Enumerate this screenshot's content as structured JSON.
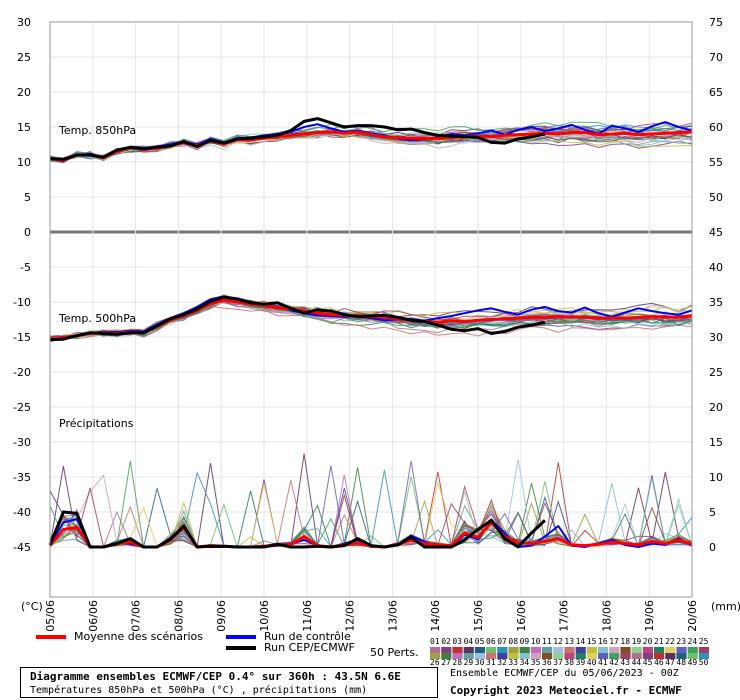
{
  "chart_data": {
    "type": "line",
    "dates": [
      "05/06",
      "06/06",
      "07/06",
      "08/06",
      "09/06",
      "10/06",
      "11/06",
      "12/06",
      "13/06",
      "14/06",
      "15/06",
      "16/06",
      "17/06",
      "18/06",
      "19/06",
      "20/06"
    ],
    "left_axis": {
      "label": "(°C)",
      "ticks": [
        30,
        25,
        20,
        15,
        10,
        5,
        0,
        -5,
        -10,
        -15,
        -20,
        -25,
        -30,
        -35,
        -40,
        -45
      ]
    },
    "right_axis": {
      "label": "(mm)",
      "ticks": [
        75,
        70,
        65,
        60,
        55,
        50,
        45,
        40,
        35,
        30,
        25,
        20,
        15,
        10,
        5,
        0
      ]
    },
    "panel_labels": {
      "t850": "Temp. 850hPa",
      "t500": "Temp. 500hPa",
      "precip": "Précipitations"
    },
    "series": [
      {
        "name": "Moyenne des scénarios",
        "color": "#ff0000",
        "t850": [
          10.5,
          10.3,
          11,
          11,
          10.6,
          11.5,
          12,
          11.8,
          12,
          12.3,
          12.8,
          12.3,
          13,
          12.6,
          13.2,
          13.2,
          13.4,
          13.6,
          13.8,
          14,
          14.2,
          14.3,
          14.1,
          14.3,
          13.9,
          13.6,
          13.5,
          13.4,
          13.4,
          13.3,
          13.5,
          13.6,
          13.7,
          13.6,
          13.8,
          13.9,
          14.0,
          14.1,
          14.0,
          14.2,
          14.2,
          13.9,
          14.0,
          14.1,
          13.9,
          14.0,
          14.1,
          14.2,
          14.3
        ],
        "t500": [
          -15.3,
          -15.1,
          -14.8,
          -14.5,
          -14.4,
          -14.5,
          -14.3,
          -14.4,
          -13.5,
          -12.6,
          -12,
          -11.2,
          -10.2,
          -9.7,
          -10,
          -10.3,
          -10.5,
          -10.8,
          -11,
          -11.3,
          -11.6,
          -11.8,
          -11.9,
          -12,
          -12.1,
          -12.2,
          -12.4,
          -12.6,
          -12.8,
          -12.9,
          -12.7,
          -12.8,
          -12.6,
          -12.5,
          -12.4,
          -12.3,
          -12.2,
          -12.2,
          -12.1,
          -12.1,
          -12.2,
          -12.3,
          -12.3,
          -12.3,
          -12.2,
          -12.1,
          -12.1,
          -12.2,
          -12.0
        ],
        "precip": [
          0.2,
          2.5,
          2.8,
          0,
          0,
          0.5,
          0.7,
          0,
          0,
          1,
          2.8,
          0,
          0.2,
          0.1,
          0,
          0,
          0.1,
          0.3,
          0.4,
          1.5,
          0.2,
          0,
          0.3,
          0.6,
          0.1,
          0,
          0.4,
          1,
          0.5,
          0.3,
          0.2,
          2,
          1.4,
          3.5,
          1.5,
          0.6,
          0.5,
          0.8,
          1.2,
          0.3,
          0.2,
          0.4,
          0.7,
          0.5,
          0.3,
          0.8,
          0.5,
          1,
          0.4
        ]
      },
      {
        "name": "Run de contrôle",
        "color": "#0000ff",
        "t850": [
          10.5,
          10.2,
          10.9,
          11.2,
          10.6,
          11.6,
          12.1,
          11.9,
          12.2,
          12.5,
          12.9,
          12.5,
          13.3,
          12.8,
          13.4,
          13.5,
          13.8,
          14,
          14.3,
          15,
          15.4,
          14.8,
          14.3,
          14.5,
          14.1,
          13.8,
          13.4,
          13.1,
          13.3,
          13.5,
          14,
          13.8,
          14.1,
          14.5,
          13.9,
          14.6,
          15.0,
          14.4,
          14.8,
          15.3,
          14.6,
          14.0,
          15.2,
          14.8,
          14.3,
          15.1,
          15.7,
          15.0,
          14.5
        ],
        "t500": [
          -15.3,
          -15,
          -14.8,
          -14.5,
          -14.2,
          -14.3,
          -14.1,
          -14.2,
          -13.2,
          -12.3,
          -11.6,
          -10.7,
          -9.6,
          -9.2,
          -9.5,
          -10,
          -10.4,
          -10.7,
          -11.2,
          -11.6,
          -11.9,
          -12,
          -12.1,
          -12,
          -12.3,
          -12.6,
          -12.5,
          -12.4,
          -12.7,
          -12.3,
          -12,
          -11.6,
          -11.2,
          -10.9,
          -11.4,
          -11.8,
          -11.1,
          -10.7,
          -11.3,
          -11.5,
          -10.8,
          -11.6,
          -12.1,
          -11.5,
          -10.9,
          -11.3,
          -11.6,
          -11.8,
          -11.2
        ],
        "precip": [
          0.3,
          3.5,
          4,
          0.1,
          0,
          0.6,
          0.5,
          0,
          0,
          1.3,
          3,
          0.1,
          0,
          0,
          0,
          0,
          0,
          0.2,
          0.5,
          1,
          0.2,
          0,
          0.5,
          1,
          0,
          0,
          0.3,
          1.6,
          0.8,
          0,
          0,
          1.8,
          1.1,
          3.8,
          2,
          0,
          0.2,
          1.5,
          3,
          0.2,
          0,
          0.5,
          1,
          0.3,
          0,
          0.5,
          0.3,
          1.2,
          0.2
        ]
      },
      {
        "name": "Run CEP/ECMWF",
        "color": "#000000",
        "t850": [
          10.5,
          10.4,
          11,
          11,
          10.7,
          11.7,
          12.1,
          11.9,
          12.1,
          12.3,
          12.9,
          12.2,
          13.1,
          12.7,
          13.3,
          13.4,
          13.6,
          13.8,
          14.5,
          15.8,
          16.2,
          15.6,
          15,
          15.2,
          15.2,
          15,
          14.6,
          14.7,
          14.2,
          13.8,
          13.7,
          13.6,
          13.5,
          12.8,
          12.7,
          13.3,
          13.6,
          14
        ],
        "t500": [
          -15.4,
          -15.3,
          -14.8,
          -14.4,
          -14.5,
          -14.6,
          -14.4,
          -14.4,
          -13.4,
          -12.4,
          -11.8,
          -11,
          -9.9,
          -9.3,
          -9.6,
          -10.1,
          -10.3,
          -10.1,
          -10.9,
          -11.6,
          -11.1,
          -11.3,
          -11.8,
          -12.1,
          -12,
          -11.9,
          -12.2,
          -12.6,
          -12.8,
          -13.3,
          -13.9,
          -14.1,
          -13.8,
          -14.5,
          -14.2,
          -13.6,
          -13.3,
          -12.9
        ],
        "precip": [
          0.3,
          5,
          4.8,
          0,
          0,
          0.5,
          1.2,
          0,
          0,
          1.1,
          3,
          0,
          0.1,
          0.1,
          0,
          0,
          0,
          0.4,
          0,
          0,
          0.1,
          0,
          0.2,
          1.2,
          0.2,
          0,
          0.3,
          1.4,
          0,
          0,
          0,
          1,
          2.5,
          3.8,
          1.2,
          0,
          2,
          3.8
        ]
      }
    ],
    "members_legend": {
      "label": "50 Perts.",
      "row1": [
        "01",
        "02",
        "03",
        "04",
        "05",
        "06",
        "07",
        "08",
        "09",
        "10",
        "11",
        "12",
        "13",
        "14",
        "15",
        "16",
        "17",
        "18",
        "19",
        "20",
        "21",
        "22",
        "23",
        "24",
        "25"
      ],
      "row2": [
        "26",
        "27",
        "28",
        "29",
        "30",
        "31",
        "32",
        "33",
        "34",
        "35",
        "36",
        "37",
        "38",
        "39",
        "40",
        "41",
        "42",
        "43",
        "44",
        "45",
        "46",
        "47",
        "48",
        "49",
        "50"
      ]
    },
    "member_colors": [
      "#b07090",
      "#804080",
      "#c03030",
      "#603060",
      "#206080",
      "#70c070",
      "#3090c0",
      "#a0a040",
      "#408040",
      "#c070c0",
      "#60a0a0",
      "#a0c0e0",
      "#d07070",
      "#4040a0",
      "#c0c040",
      "#80c0d0",
      "#d0a0c0",
      "#805020",
      "#90d090",
      "#c04080",
      "#208060",
      "#e0d060",
      "#6060c0",
      "#40a060",
      "#a04060"
    ]
  },
  "footer": {
    "title": "Diagramme ensembles ECMWF/CEP 0.4° sur 360h : 43.5N 6.6E",
    "subtitle": "Températures 850hPa et 500hPa (°C) , précipitations (mm)",
    "run_info": "Ensemble ECMWF/CEP du 05/06/2023 - 00Z",
    "copyright": "Copyright 2023 Meteociel.fr - ECMWF"
  }
}
